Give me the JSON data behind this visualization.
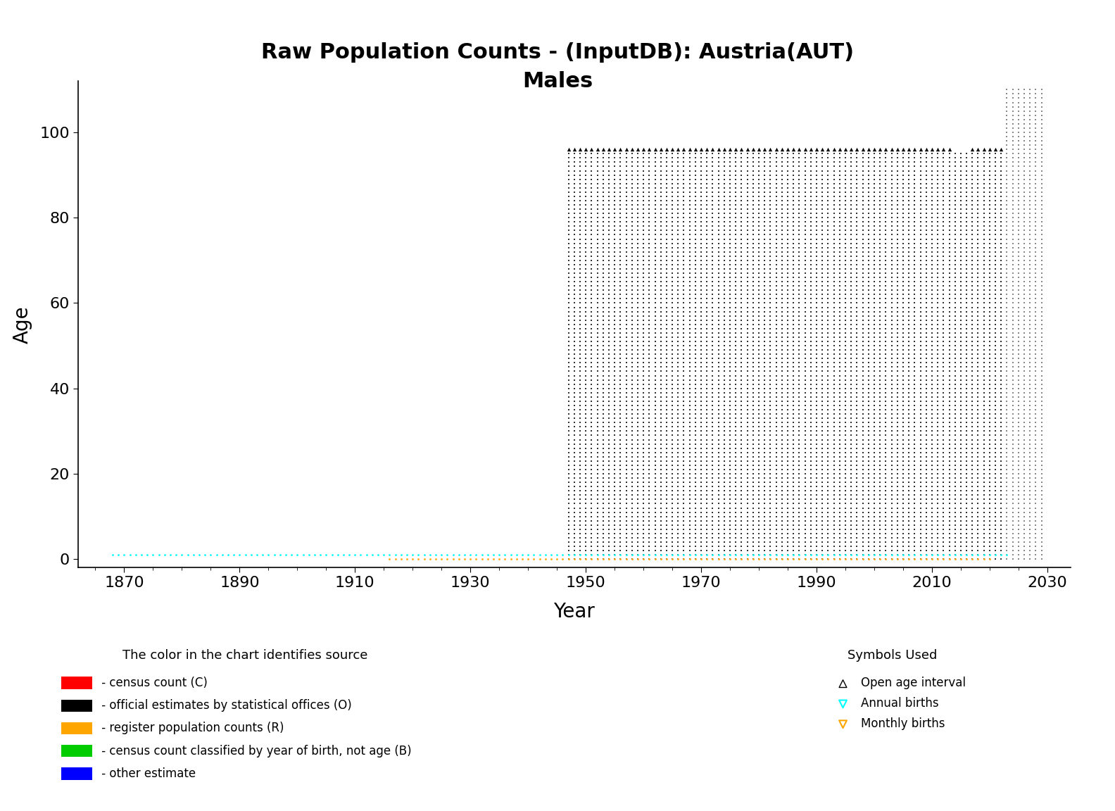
{
  "title_line1": "Raw Population Counts - (InputDB): Austria(AUT)",
  "title_line2": "Males",
  "xlabel": "Year",
  "ylabel": "Age",
  "xlim": [
    1862,
    2034
  ],
  "ylim": [
    -2,
    112
  ],
  "xticks": [
    1870,
    1890,
    1910,
    1930,
    1950,
    1970,
    1990,
    2010,
    2030
  ],
  "yticks": [
    0,
    20,
    40,
    60,
    80,
    100
  ],
  "background_color": "#ffffff",
  "cyan_births_x_start": 1868,
  "cyan_births_x_end": 2023,
  "cyan_births_y": 1,
  "orange_births_x_start": 1916,
  "orange_births_x_end": 2020,
  "orange_births_y": 0,
  "main_data_x_start": 1947,
  "main_data_x_end": 2022,
  "main_data_age_min": 0,
  "main_data_age_max": 95,
  "open_age_x_start": 1947,
  "open_age_x_end": 2013,
  "open_age_x_start2": 2017,
  "open_age_x_end2": 2022,
  "open_age_y": 96,
  "forecast_x_start": 2023,
  "forecast_x_end": 2029,
  "forecast_age_min": 0,
  "forecast_age_max": 110,
  "dot_color": "#333333",
  "forecast_dot_color": "#888888",
  "triangle_size": 15,
  "triangle_color": "black",
  "cyan_color": "#00FFFF",
  "orange_color": "#FFA500",
  "legend_color_title": "The color in the chart identifies source",
  "legend_symbols_title": "Symbols Used",
  "legend_items": [
    {
      "color": "#FF0000",
      "label": " - census count (C)"
    },
    {
      "color": "#000000",
      "label": " - official estimates by statistical offices (O)"
    },
    {
      "color": "#FFA500",
      "label": " - register population counts (R)"
    },
    {
      "color": "#00CC00",
      "label": " - census count classified by year of birth, not age (B)"
    },
    {
      "color": "#0000FF",
      "label": " - other estimate"
    }
  ]
}
